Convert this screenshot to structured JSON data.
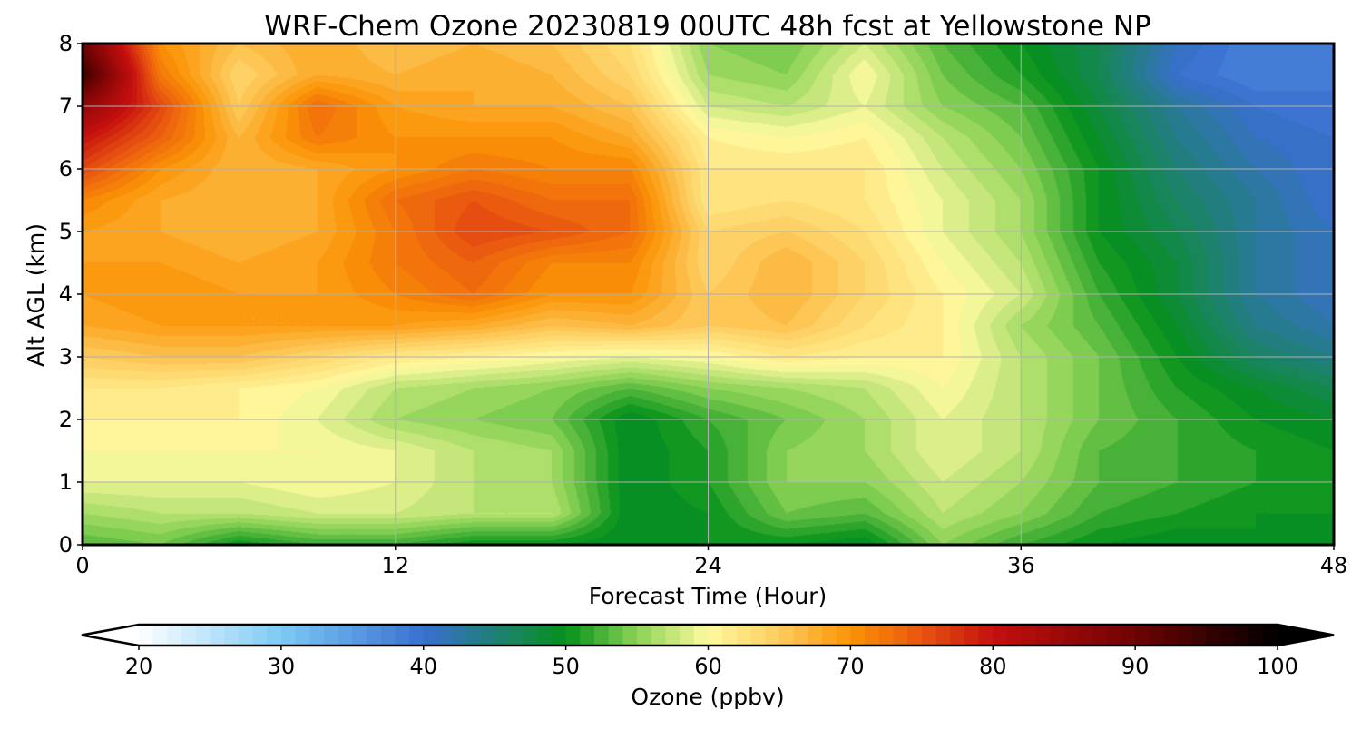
{
  "chart_data": {
    "type": "heatmap",
    "subtype": "filled-contour time-height cross section",
    "title": "WRF-Chem Ozone  20230819 00UTC 48h fcst at Yellowstone NP",
    "xlabel": "Forecast Time (Hour)",
    "ylabel": "Alt AGL (km)",
    "xlim": [
      0,
      48
    ],
    "ylim": [
      0,
      8
    ],
    "xticks": [
      0,
      12,
      24,
      36,
      48
    ],
    "yticks": [
      0,
      1,
      2,
      3,
      4,
      5,
      6,
      7,
      8
    ],
    "grid": true,
    "x": [
      0,
      3,
      6,
      9,
      12,
      15,
      18,
      21,
      24,
      27,
      30,
      33,
      36,
      39,
      42,
      45,
      48
    ],
    "y": [
      0,
      0.5,
      1,
      1.5,
      2,
      2.5,
      3,
      3.5,
      4,
      4.5,
      5,
      5.5,
      6,
      6.5,
      7,
      7.5,
      8
    ],
    "z": [
      [
        53,
        54,
        50,
        52,
        52,
        50,
        50,
        49,
        50,
        50,
        49,
        55,
        52,
        50,
        49,
        50,
        49
      ],
      [
        56,
        57,
        57,
        58,
        58,
        57,
        57,
        49,
        50,
        54,
        53,
        57,
        55,
        52,
        51,
        50,
        50
      ],
      [
        59,
        59,
        59,
        60,
        59,
        57,
        56,
        49,
        51,
        55,
        55,
        58,
        56,
        53,
        52,
        51,
        50
      ],
      [
        60,
        60,
        60,
        60,
        59,
        57,
        56,
        49,
        51,
        55,
        56,
        59,
        57,
        53,
        52,
        51,
        50
      ],
      [
        61,
        61,
        61,
        59,
        56,
        55,
        54,
        49,
        52,
        54,
        56,
        59,
        57,
        54,
        52,
        50,
        49
      ],
      [
        62,
        62,
        61,
        60,
        57,
        56,
        55,
        53,
        55,
        56,
        57,
        60,
        57,
        54,
        51,
        49,
        47
      ],
      [
        65,
        66,
        66,
        64,
        62,
        61,
        60,
        59,
        60,
        62,
        61,
        61,
        57,
        54,
        50,
        46,
        44
      ],
      [
        68,
        69,
        69,
        69,
        69,
        68,
        66,
        67,
        65,
        66,
        63,
        61,
        56,
        53,
        49,
        44,
        42
      ],
      [
        69,
        70,
        69,
        69,
        71,
        73,
        70,
        70,
        65,
        67,
        64,
        61,
        58,
        52,
        48,
        43,
        41
      ],
      [
        69,
        69,
        68,
        69,
        72,
        74,
        71,
        71,
        64,
        67,
        64,
        60,
        57,
        51,
        48,
        43,
        41
      ],
      [
        69,
        68,
        67,
        68,
        72,
        76,
        75,
        73,
        64,
        65,
        63,
        59,
        56,
        50,
        47,
        43,
        41
      ],
      [
        71,
        68,
        67,
        68,
        73,
        75,
        73,
        73,
        62,
        63,
        62,
        59,
        56,
        50,
        46,
        43,
        40
      ],
      [
        76,
        70,
        67,
        68,
        70,
        72,
        71,
        71,
        62,
        62,
        62,
        58,
        55,
        50,
        45,
        42,
        40
      ],
      [
        80,
        74,
        67,
        72,
        70,
        70,
        70,
        68,
        61,
        60,
        61,
        57,
        54,
        49,
        44,
        41,
        40
      ],
      [
        86,
        76,
        65,
        73,
        69,
        68,
        68,
        66,
        58,
        57,
        59,
        55,
        53,
        48,
        43,
        40,
        39
      ],
      [
        95,
        72,
        64,
        68,
        67,
        68,
        67,
        64,
        56,
        55,
        60,
        54,
        51,
        47,
        40,
        38,
        39
      ],
      [
        90,
        70,
        66,
        68,
        66,
        67,
        66,
        63,
        55,
        54,
        58,
        53,
        50,
        47,
        41,
        38,
        39
      ]
    ],
    "colorbar": {
      "label": "Ozone  (ppbv)",
      "min": 20,
      "max": 100,
      "ticks": [
        20,
        30,
        40,
        50,
        60,
        70,
        80,
        90,
        100
      ],
      "extend": "both",
      "colormap": [
        [
          20,
          "#ffffff"
        ],
        [
          30,
          "#7cc9f5"
        ],
        [
          40,
          "#3a6fd0"
        ],
        [
          50,
          "#05911a"
        ],
        [
          55,
          "#8bd256"
        ],
        [
          60,
          "#fffaa0"
        ],
        [
          65,
          "#fdcc5e"
        ],
        [
          70,
          "#fb9306"
        ],
        [
          75,
          "#e85510"
        ],
        [
          80,
          "#c50f0f"
        ],
        [
          90,
          "#6e0303"
        ],
        [
          100,
          "#000000"
        ]
      ]
    }
  }
}
